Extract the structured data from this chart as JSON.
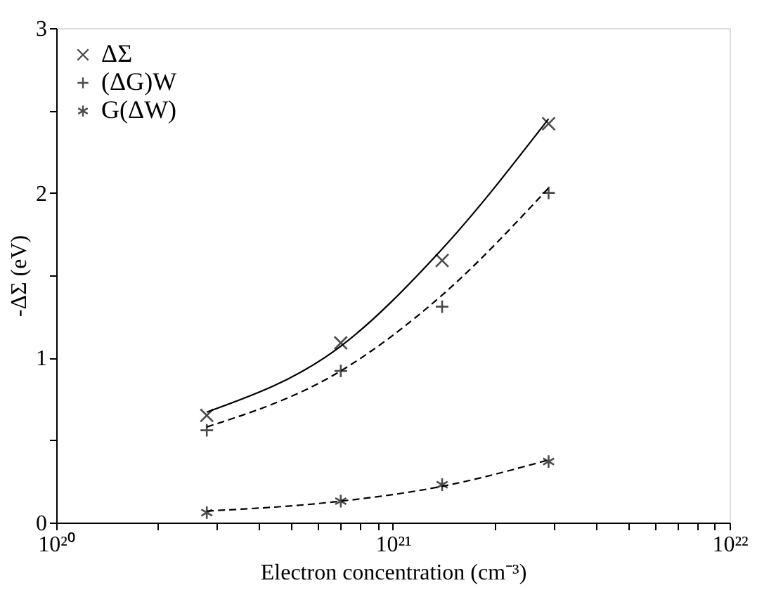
{
  "chart_data": {
    "type": "scatter",
    "xlabel": "Electron concentration (cm⁻³)",
    "ylabel": "-ΔΣ (eV)",
    "log": "x",
    "legend": "top left",
    "grid": false,
    "xlim": [
      1e+20,
      1e+22
    ],
    "ylim": [
      0,
      3
    ],
    "xticks": [
      {
        "value": 1e+20,
        "label": "10²⁰"
      },
      {
        "value": 2e+20,
        "label": null
      },
      {
        "value": 3e+20,
        "label": null
      },
      {
        "value": 4e+20,
        "label": null
      },
      {
        "value": 5e+20,
        "label": null
      },
      {
        "value": 6e+20,
        "label": null
      },
      {
        "value": 7e+20,
        "label": null
      },
      {
        "value": 8e+20,
        "label": null
      },
      {
        "value": 9e+20,
        "label": null
      },
      {
        "value": 1e+21,
        "label": "10²¹"
      },
      {
        "value": 2e+21,
        "label": null
      },
      {
        "value": 3e+21,
        "label": null
      },
      {
        "value": 4e+21,
        "label": null
      },
      {
        "value": 5e+21,
        "label": null
      },
      {
        "value": 6e+21,
        "label": null
      },
      {
        "value": 7e+21,
        "label": null
      },
      {
        "value": 8e+21,
        "label": null
      },
      {
        "value": 9e+21,
        "label": null
      },
      {
        "value": 1e+22,
        "label": "10²²"
      }
    ],
    "yticks": [
      0,
      {
        "value": 0.5,
        "label": null
      },
      1,
      {
        "value": 1.5,
        "label": null
      },
      2,
      {
        "value": 2.5,
        "label": null
      },
      3
    ],
    "x": [
      2.8e+20,
      7e+20,
      1.4e+21,
      2.9e+21
    ],
    "series": [
      {
        "name": "ΔΣ",
        "color": "#000000",
        "marker": "cross",
        "values": [
          0.65,
          1.09,
          1.59,
          2.42
        ]
      },
      {
        "name": "(ΔG)W",
        "color": "#000000",
        "marker": "plus",
        "values": [
          0.56,
          0.92,
          1.31,
          2.0
        ]
      },
      {
        "name": "G(ΔW)",
        "color": "#000000",
        "values": [
          0.06,
          0.13,
          0.23,
          0.37
        ]
      },
      {
        "type": "line",
        "color": "#000000",
        "line_style": "solid",
        "values": [
          0.67,
          1.07,
          1.66,
          2.45
        ]
      },
      {
        "type": "line",
        "color": "#000000",
        "line_style": "dashed",
        "values": [
          0.58,
          0.92,
          1.38,
          2.03
        ]
      },
      {
        "type": "line",
        "color": "#000000",
        "line_style": "dashed",
        "values": [
          0.07,
          0.13,
          0.22,
          0.38
        ]
      }
    ]
  }
}
